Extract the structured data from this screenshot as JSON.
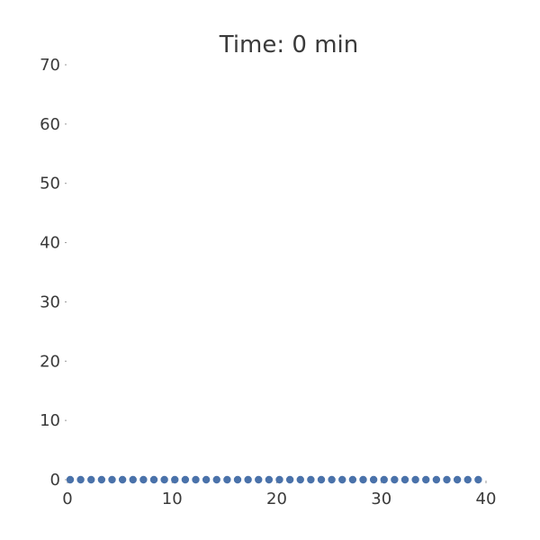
{
  "chart_data": {
    "type": "scatter",
    "title": "Time: 0 min",
    "xlabel": "",
    "ylabel": "",
    "xlim": [
      0,
      40
    ],
    "ylim": [
      0,
      70
    ],
    "xticks": [
      "0",
      "10",
      "20",
      "30",
      "40"
    ],
    "yticks": [
      "0",
      "10",
      "20",
      "30",
      "40",
      "50",
      "60",
      "70"
    ],
    "grid": false,
    "legend": "none",
    "color": "#4a72aa",
    "series": [
      {
        "x": [
          0,
          1,
          2,
          3,
          4,
          5,
          6,
          7,
          8,
          9,
          10,
          11,
          12,
          13,
          14,
          15,
          16,
          17,
          18,
          19,
          20,
          21,
          22,
          23,
          24,
          25,
          26,
          27,
          28,
          29,
          30,
          31,
          32,
          33,
          34,
          35,
          36,
          37,
          38,
          39
        ],
        "y": [
          0,
          0,
          0,
          0,
          0,
          0,
          0,
          0,
          0,
          0,
          0,
          0,
          0,
          0,
          0,
          0,
          0,
          0,
          0,
          0,
          0,
          0,
          0,
          0,
          0,
          0,
          0,
          0,
          0,
          0,
          0,
          0,
          0,
          0,
          0,
          0,
          0,
          0,
          0,
          0
        ]
      }
    ]
  }
}
